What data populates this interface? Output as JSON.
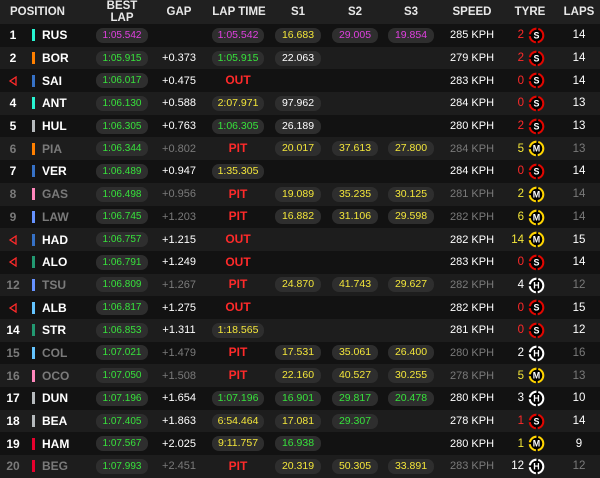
{
  "header": {
    "position": "POSITION",
    "best_lap": "BEST LAP",
    "gap": "GAP",
    "lap_time": "LAP TIME",
    "s1": "S1",
    "s2": "S2",
    "s3": "S3",
    "speed": "SPEED",
    "tyre": "TYRE",
    "laps": "LAPS"
  },
  "colors": {
    "purple": "#e040e0",
    "green": "#37e23b",
    "yellow": "#f3e63a",
    "red": "#ff2a2a",
    "white": "#ffffff",
    "soft": "#e10600",
    "medium": "#ffd400",
    "hard": "#ffffff"
  },
  "rows": [
    {
      "pos": "1",
      "out": false,
      "team_color": "#27f4d2",
      "name": "RUS",
      "best": "1:05.542",
      "best_c": "purple",
      "gap": "",
      "lap": "1:05.542",
      "lap_c": "purple",
      "lap_kind": "pill",
      "s1": "16.683",
      "s1_c": "yellow",
      "s2": "29.005",
      "s2_c": "purple",
      "s3": "19.854",
      "s3_c": "purple",
      "speed": "285 KPH",
      "tyre_n": "2",
      "tyre_n_c": "red",
      "tyre": "S",
      "laps": "14",
      "dim": false
    },
    {
      "pos": "2",
      "out": false,
      "team_color": "#ff8000",
      "name": "BOR",
      "best": "1:05.915",
      "best_c": "green",
      "gap": "+0.373",
      "lap": "1:05.915",
      "lap_c": "green",
      "lap_kind": "pill",
      "s1": "22.063",
      "s1_c": "white",
      "s2": "",
      "s2_c": "white",
      "s3": "",
      "s3_c": "white",
      "speed": "279 KPH",
      "tyre_n": "2",
      "tyre_n_c": "red",
      "tyre": "S",
      "laps": "14",
      "dim": false
    },
    {
      "pos": "",
      "out": true,
      "team_color": "#3671c6",
      "name": "SAI",
      "best": "1:06.017",
      "best_c": "green",
      "gap": "+0.475",
      "lap": "OUT",
      "lap_c": "red",
      "lap_kind": "txt",
      "s1": "",
      "s1_c": "white",
      "s2": "",
      "s2_c": "white",
      "s3": "",
      "s3_c": "white",
      "speed": "283 KPH",
      "tyre_n": "0",
      "tyre_n_c": "red",
      "tyre": "S",
      "laps": "14",
      "dim": false
    },
    {
      "pos": "4",
      "out": false,
      "team_color": "#27f4d2",
      "name": "ANT",
      "best": "1:06.130",
      "best_c": "green",
      "gap": "+0.588",
      "lap": "2:07.971",
      "lap_c": "yellow",
      "lap_kind": "pill",
      "s1": "97.962",
      "s1_c": "white",
      "s2": "",
      "s2_c": "white",
      "s3": "",
      "s3_c": "white",
      "speed": "284 KPH",
      "tyre_n": "0",
      "tyre_n_c": "red",
      "tyre": "S",
      "laps": "13",
      "dim": false
    },
    {
      "pos": "5",
      "out": false,
      "team_color": "#b6babd",
      "name": "HUL",
      "best": "1:06.305",
      "best_c": "green",
      "gap": "+0.763",
      "lap": "1:06.305",
      "lap_c": "green",
      "lap_kind": "pill",
      "s1": "26.189",
      "s1_c": "white",
      "s2": "",
      "s2_c": "white",
      "s3": "",
      "s3_c": "white",
      "speed": "280 KPH",
      "tyre_n": "2",
      "tyre_n_c": "red",
      "tyre": "S",
      "laps": "13",
      "dim": false
    },
    {
      "pos": "6",
      "out": false,
      "team_color": "#ff8000",
      "name": "PIA",
      "best": "1:06.344",
      "best_c": "green",
      "gap": "+0.802",
      "lap": "PIT",
      "lap_c": "red",
      "lap_kind": "txt",
      "s1": "20.017",
      "s1_c": "yellow",
      "s2": "37.613",
      "s2_c": "yellow",
      "s3": "27.800",
      "s3_c": "yellow",
      "speed": "284 KPH",
      "tyre_n": "5",
      "tyre_n_c": "yellow",
      "tyre": "M",
      "laps": "13",
      "dim": true
    },
    {
      "pos": "7",
      "out": false,
      "team_color": "#3671c6",
      "name": "VER",
      "best": "1:06.489",
      "best_c": "green",
      "gap": "+0.947",
      "lap": "1:35.305",
      "lap_c": "yellow",
      "lap_kind": "pill",
      "s1": "",
      "s1_c": "white",
      "s2": "",
      "s2_c": "white",
      "s3": "",
      "s3_c": "white",
      "speed": "284 KPH",
      "tyre_n": "0",
      "tyre_n_c": "red",
      "tyre": "S",
      "laps": "14",
      "dim": false
    },
    {
      "pos": "8",
      "out": false,
      "team_color": "#ff87bc",
      "name": "GAS",
      "best": "1:06.498",
      "best_c": "green",
      "gap": "+0.956",
      "lap": "PIT",
      "lap_c": "red",
      "lap_kind": "txt",
      "s1": "19.089",
      "s1_c": "yellow",
      "s2": "35.235",
      "s2_c": "yellow",
      "s3": "30.125",
      "s3_c": "yellow",
      "speed": "281 KPH",
      "tyre_n": "2",
      "tyre_n_c": "yellow",
      "tyre": "M",
      "laps": "14",
      "dim": true
    },
    {
      "pos": "9",
      "out": false,
      "team_color": "#6692ff",
      "name": "LAW",
      "best": "1:06.745",
      "best_c": "green",
      "gap": "+1.203",
      "lap": "PIT",
      "lap_c": "red",
      "lap_kind": "txt",
      "s1": "16.882",
      "s1_c": "yellow",
      "s2": "31.106",
      "s2_c": "yellow",
      "s3": "29.598",
      "s3_c": "yellow",
      "speed": "282 KPH",
      "tyre_n": "6",
      "tyre_n_c": "yellow",
      "tyre": "M",
      "laps": "14",
      "dim": true
    },
    {
      "pos": "",
      "out": true,
      "team_color": "#3671c6",
      "name": "HAD",
      "best": "1:06.757",
      "best_c": "green",
      "gap": "+1.215",
      "lap": "OUT",
      "lap_c": "red",
      "lap_kind": "txt",
      "s1": "",
      "s1_c": "white",
      "s2": "",
      "s2_c": "white",
      "s3": "",
      "s3_c": "white",
      "speed": "282 KPH",
      "tyre_n": "14",
      "tyre_n_c": "yellow",
      "tyre": "M",
      "laps": "15",
      "dim": false
    },
    {
      "pos": "",
      "out": true,
      "team_color": "#229971",
      "name": "ALO",
      "best": "1:06.791",
      "best_c": "green",
      "gap": "+1.249",
      "lap": "OUT",
      "lap_c": "red",
      "lap_kind": "txt",
      "s1": "",
      "s1_c": "white",
      "s2": "",
      "s2_c": "white",
      "s3": "",
      "s3_c": "white",
      "speed": "283 KPH",
      "tyre_n": "0",
      "tyre_n_c": "red",
      "tyre": "S",
      "laps": "14",
      "dim": false
    },
    {
      "pos": "12",
      "out": false,
      "team_color": "#6692ff",
      "name": "TSU",
      "best": "1:06.809",
      "best_c": "green",
      "gap": "+1.267",
      "lap": "PIT",
      "lap_c": "red",
      "lap_kind": "txt",
      "s1": "24.870",
      "s1_c": "yellow",
      "s2": "41.743",
      "s2_c": "yellow",
      "s3": "29.627",
      "s3_c": "yellow",
      "speed": "282 KPH",
      "tyre_n": "4",
      "tyre_n_c": "white",
      "tyre": "H",
      "laps": "12",
      "dim": true
    },
    {
      "pos": "",
      "out": true,
      "team_color": "#64c4ff",
      "name": "ALB",
      "best": "1:06.817",
      "best_c": "green",
      "gap": "+1.275",
      "lap": "OUT",
      "lap_c": "red",
      "lap_kind": "txt",
      "s1": "",
      "s1_c": "white",
      "s2": "",
      "s2_c": "white",
      "s3": "",
      "s3_c": "white",
      "speed": "282 KPH",
      "tyre_n": "0",
      "tyre_n_c": "red",
      "tyre": "S",
      "laps": "15",
      "dim": false
    },
    {
      "pos": "14",
      "out": false,
      "team_color": "#229971",
      "name": "STR",
      "best": "1:06.853",
      "best_c": "green",
      "gap": "+1.311",
      "lap": "1:18.565",
      "lap_c": "yellow",
      "lap_kind": "pill",
      "s1": "",
      "s1_c": "white",
      "s2": "",
      "s2_c": "white",
      "s3": "",
      "s3_c": "white",
      "speed": "281 KPH",
      "tyre_n": "0",
      "tyre_n_c": "red",
      "tyre": "S",
      "laps": "12",
      "dim": false
    },
    {
      "pos": "15",
      "out": false,
      "team_color": "#64c4ff",
      "name": "COL",
      "best": "1:07.021",
      "best_c": "green",
      "gap": "+1.479",
      "lap": "PIT",
      "lap_c": "red",
      "lap_kind": "txt",
      "s1": "17.531",
      "s1_c": "yellow",
      "s2": "35.061",
      "s2_c": "yellow",
      "s3": "26.400",
      "s3_c": "yellow",
      "speed": "280 KPH",
      "tyre_n": "2",
      "tyre_n_c": "white",
      "tyre": "H",
      "laps": "16",
      "dim": true
    },
    {
      "pos": "16",
      "out": false,
      "team_color": "#ff87bc",
      "name": "OCO",
      "best": "1:07.050",
      "best_c": "green",
      "gap": "+1.508",
      "lap": "PIT",
      "lap_c": "red",
      "lap_kind": "txt",
      "s1": "22.160",
      "s1_c": "yellow",
      "s2": "40.527",
      "s2_c": "yellow",
      "s3": "30.255",
      "s3_c": "yellow",
      "speed": "278 KPH",
      "tyre_n": "5",
      "tyre_n_c": "yellow",
      "tyre": "M",
      "laps": "13",
      "dim": true
    },
    {
      "pos": "17",
      "out": false,
      "team_color": "#b6babd",
      "name": "DUN",
      "best": "1:07.196",
      "best_c": "green",
      "gap": "+1.654",
      "lap": "1:07.196",
      "lap_c": "green",
      "lap_kind": "pill",
      "s1": "16.901",
      "s1_c": "green",
      "s2": "29.817",
      "s2_c": "green",
      "s3": "20.478",
      "s3_c": "green",
      "speed": "280 KPH",
      "tyre_n": "3",
      "tyre_n_c": "white",
      "tyre": "H",
      "laps": "10",
      "dim": false
    },
    {
      "pos": "18",
      "out": false,
      "team_color": "#b6babd",
      "name": "BEA",
      "best": "1:07.405",
      "best_c": "green",
      "gap": "+1.863",
      "lap": "6:54.464",
      "lap_c": "yellow",
      "lap_kind": "pill",
      "s1": "17.081",
      "s1_c": "yellow",
      "s2": "29.307",
      "s2_c": "green",
      "s3": "",
      "s3_c": "white",
      "speed": "278 KPH",
      "tyre_n": "1",
      "tyre_n_c": "red",
      "tyre": "S",
      "laps": "14",
      "dim": false
    },
    {
      "pos": "19",
      "out": false,
      "team_color": "#e8002d",
      "name": "HAM",
      "best": "1:07.567",
      "best_c": "green",
      "gap": "+2.025",
      "lap": "9:11.757",
      "lap_c": "yellow",
      "lap_kind": "pill",
      "s1": "16.938",
      "s1_c": "green",
      "s2": "",
      "s2_c": "white",
      "s3": "",
      "s3_c": "white",
      "speed": "280 KPH",
      "tyre_n": "1",
      "tyre_n_c": "yellow",
      "tyre": "M",
      "laps": "9",
      "dim": false
    },
    {
      "pos": "20",
      "out": false,
      "team_color": "#e8002d",
      "name": "BEG",
      "best": "1:07.993",
      "best_c": "green",
      "gap": "+2.451",
      "lap": "PIT",
      "lap_c": "red",
      "lap_kind": "txt",
      "s1": "20.319",
      "s1_c": "yellow",
      "s2": "50.305",
      "s2_c": "yellow",
      "s3": "33.891",
      "s3_c": "yellow",
      "speed": "283 KPH",
      "tyre_n": "12",
      "tyre_n_c": "white",
      "tyre": "H",
      "laps": "12",
      "dim": true
    }
  ]
}
